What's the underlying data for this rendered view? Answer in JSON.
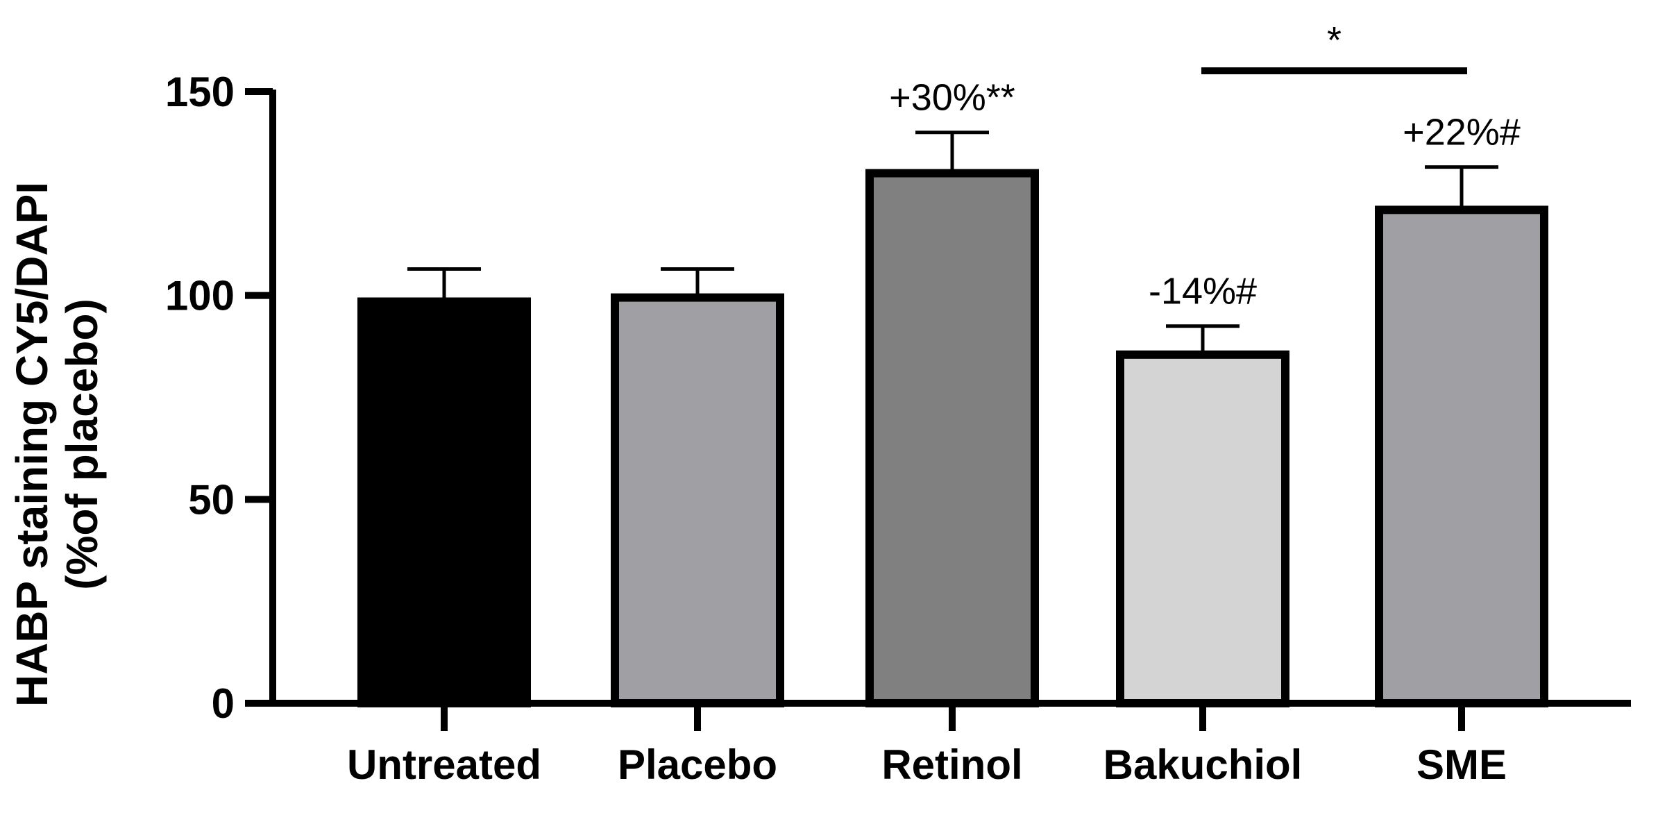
{
  "chart_data": {
    "type": "bar",
    "categories": [
      "Untreated",
      "Placebo",
      "Retinol",
      "Bakuchiol",
      "SME"
    ],
    "values": [
      98.5,
      99.5,
      130,
      85.5,
      121
    ],
    "errors": [
      8,
      7,
      10,
      7,
      10.5
    ],
    "colors": [
      "#000000",
      "#a0a0a4",
      "#808080",
      "#d4d4d4",
      "#a0a0a4"
    ],
    "ylabel_line1": "HABP staining CY5/DAPI",
    "ylabel_line2": "(%of placebo)",
    "ylim": [
      0,
      150
    ],
    "yticks": [
      0,
      50,
      100,
      150
    ],
    "ytick_labels": [
      "0",
      "50",
      "100",
      "150"
    ],
    "grid": false,
    "annotations": [
      {
        "category": "Retinol",
        "text": "+30%**"
      },
      {
        "category": "Bakuchiol",
        "text": "-14%#"
      },
      {
        "category": "SME",
        "text": "+22%#"
      }
    ],
    "significance": {
      "from": "Bakuchiol",
      "to": "SME",
      "text": "*"
    }
  }
}
